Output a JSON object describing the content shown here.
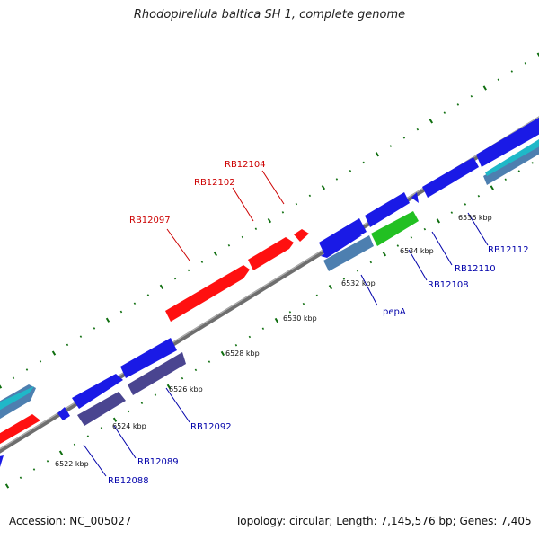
{
  "title": "Rhodopirellula baltica SH 1, complete genome",
  "footer": {
    "accession": "Accession: NC_005027",
    "summary": "Topology: circular; Length: 7,145,576 bp; Genes: 7,405"
  },
  "colors": {
    "backbone": "#8a8a8a",
    "tick": "#0f6e0f",
    "label_red": "#cc0000",
    "label_blue": "#0000aa",
    "cds_blue": "#1a1ae6",
    "cds_red": "#ff1010",
    "cds_purple": "#4a4590",
    "cds_steel": "#4d7fb0",
    "cds_green": "#22c022",
    "cds_cyan": "#1fb8c8"
  },
  "kbp_labels": [
    "6522 kbp",
    "6524 kbp",
    "6526 kbp",
    "6528 kbp",
    "6530 kbp",
    "6532 kbp",
    "6534 kbp",
    "6536 kbp"
  ],
  "gene_labels": {
    "RB12097": "RB12097",
    "RB12102": "RB12102",
    "RB12104": "RB12104",
    "pepA": "pepA",
    "RB12108": "RB12108",
    "RB12110": "RB12110",
    "RB12112": "RB12112",
    "RB12092": "RB12092",
    "RB12089": "RB12089",
    "RB12088": "RB12088"
  }
}
